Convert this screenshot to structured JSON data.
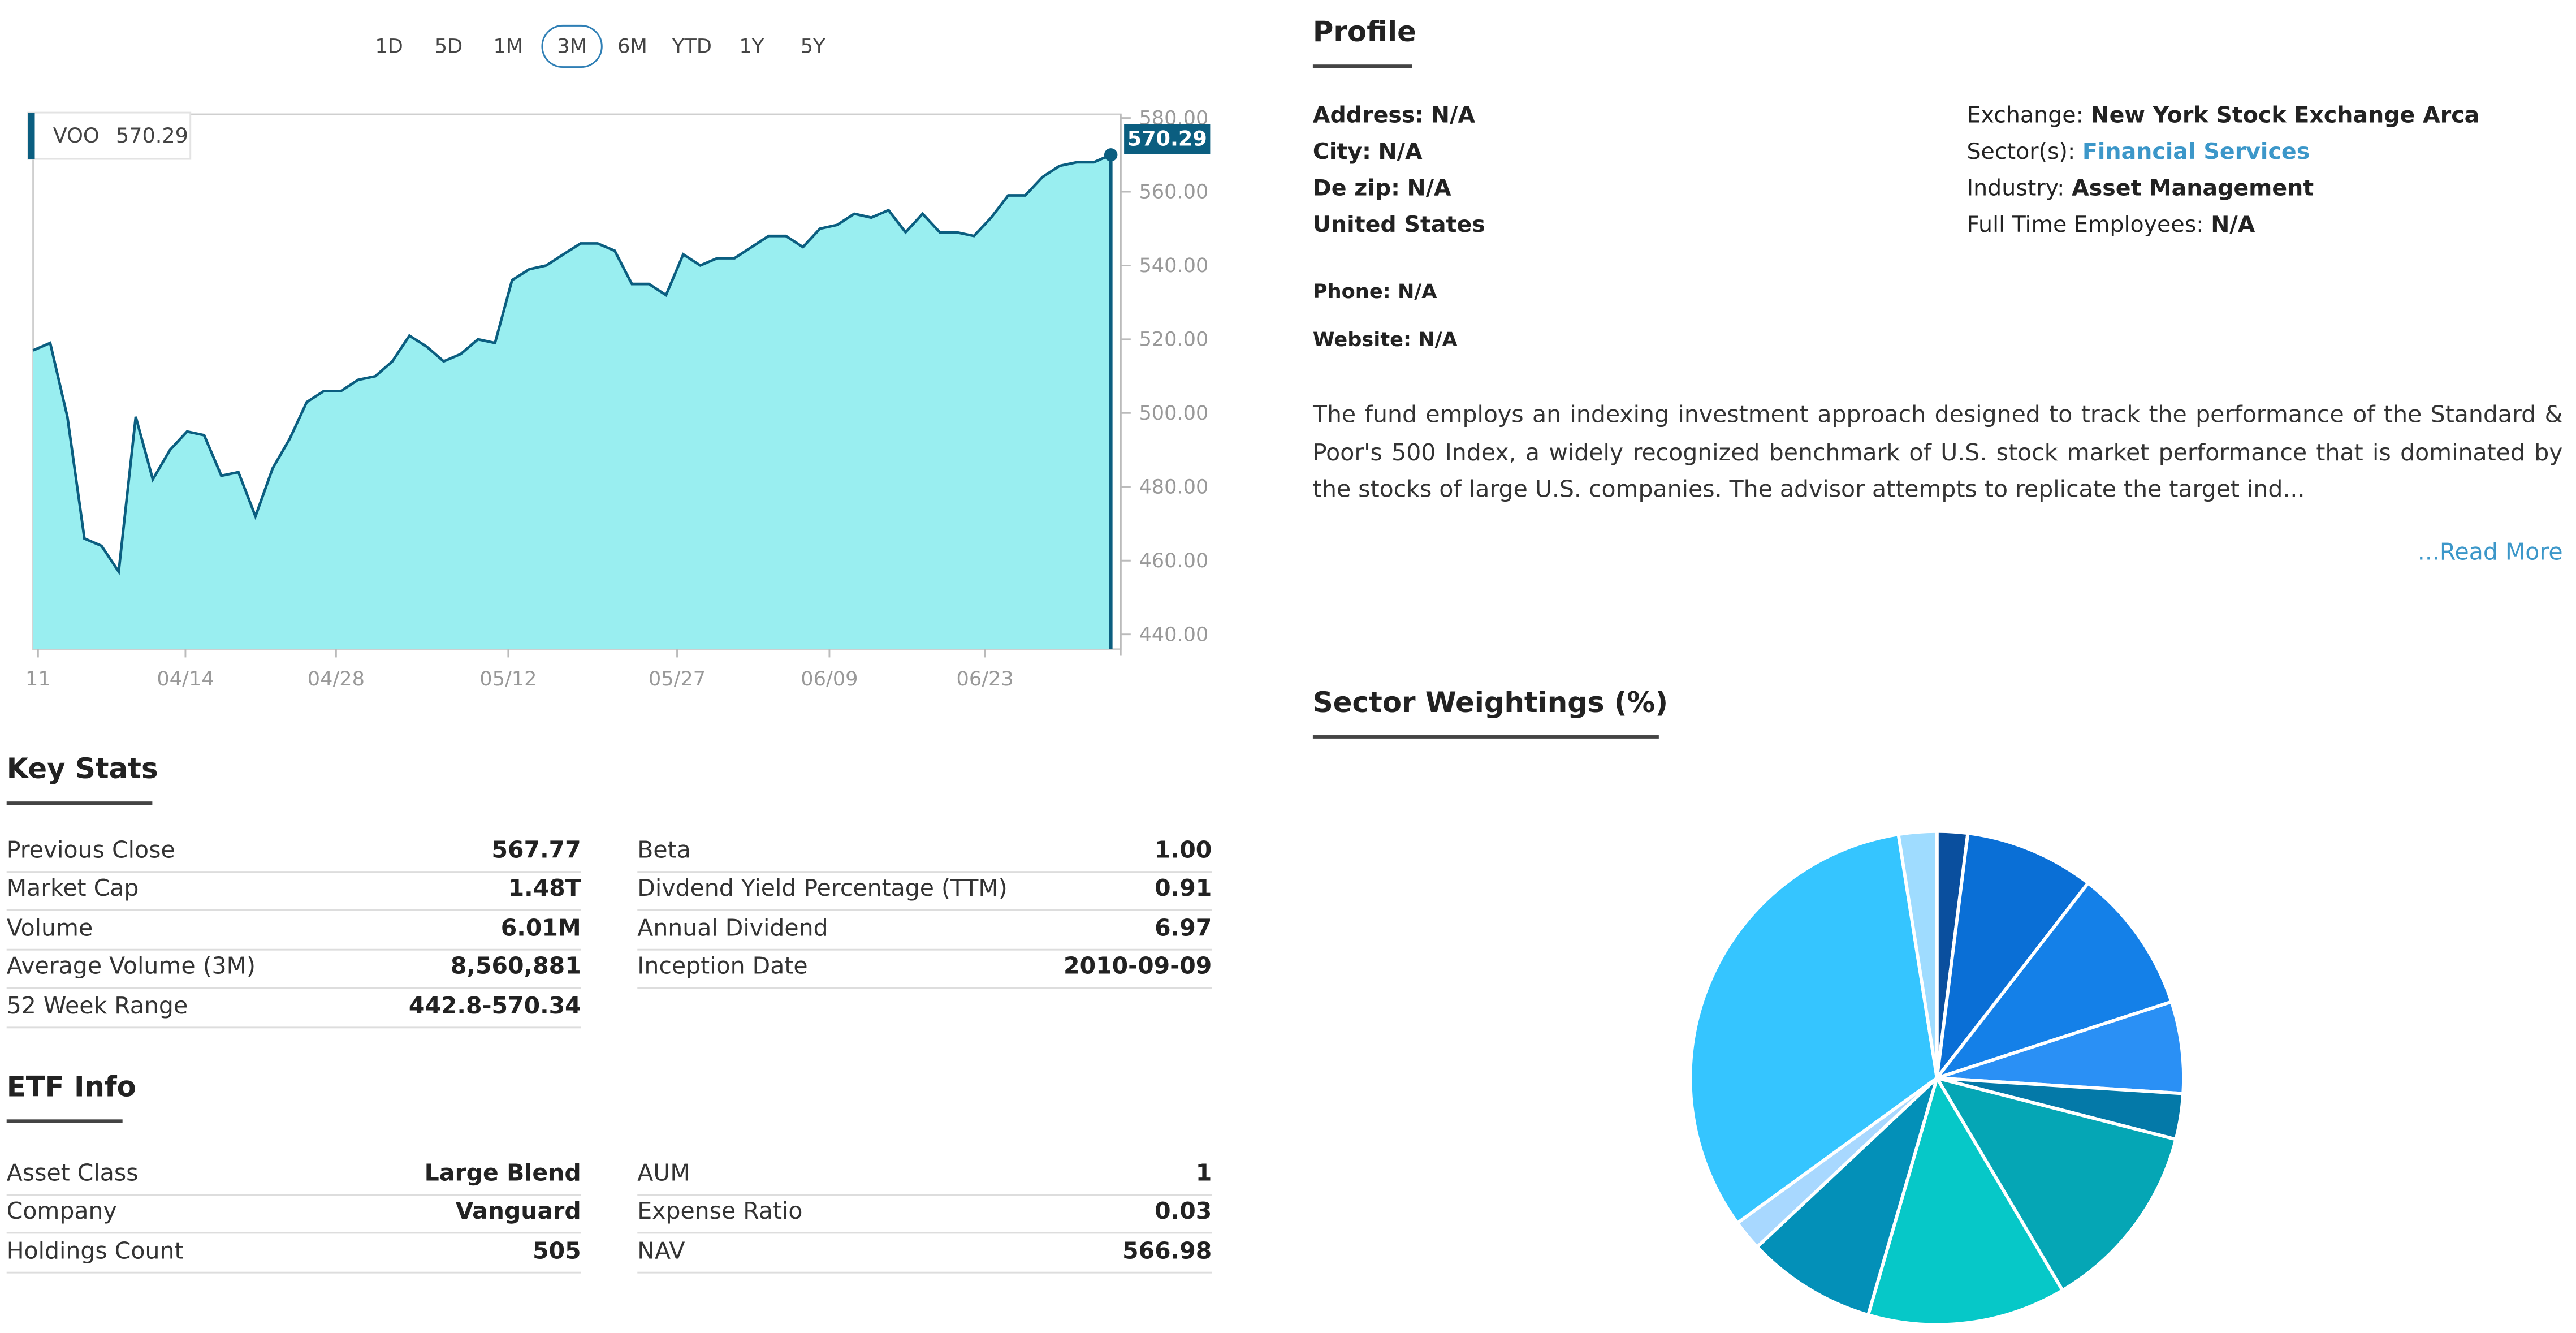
{
  "range_tabs": [
    "1D",
    "5D",
    "1M",
    "3M",
    "6M",
    "YTD",
    "1Y",
    "5Y"
  ],
  "active_range": "3M",
  "chart_data": {
    "type": "area",
    "title": "",
    "legend": {
      "symbol": "VOO",
      "value": "570.29"
    },
    "last_price_label": "570.29",
    "x_tick_labels": [
      "11",
      "04/14",
      "04/28",
      "05/12",
      "05/27",
      "06/09",
      "06/23"
    ],
    "y_tick_labels": [
      "580.00",
      "560.00",
      "540.00",
      "520.00",
      "500.00",
      "480.00",
      "460.00",
      "440.00"
    ],
    "ylim": [
      436,
      581
    ],
    "series": [
      {
        "values": [
          517,
          519,
          499,
          466,
          464,
          457,
          499,
          482,
          490,
          495,
          494,
          483,
          484,
          472,
          485,
          493,
          503,
          506,
          506,
          509,
          510,
          514,
          521,
          518,
          514,
          516,
          520,
          519,
          536,
          539,
          540,
          543,
          546,
          546,
          544,
          535,
          535,
          532,
          543,
          540,
          542,
          542,
          545,
          548,
          548,
          545,
          550,
          551,
          554,
          553,
          555,
          549,
          554,
          549,
          549,
          548,
          553,
          559,
          559,
          564,
          567,
          568,
          568,
          570
        ]
      }
    ],
    "colors": {
      "line": "#0b5e80",
      "fill": "#99eef0",
      "label_bg": "#0b5e80"
    }
  },
  "key_stats": {
    "title": "Key Stats",
    "left": [
      {
        "label": "Previous Close",
        "value": "567.77"
      },
      {
        "label": "Market Cap",
        "value": "1.48T"
      },
      {
        "label": "Volume",
        "value": "6.01M"
      },
      {
        "label": "Average Volume (3M)",
        "value": "8,560,881"
      },
      {
        "label": "52 Week Range",
        "value": "442.8-570.34"
      }
    ],
    "right": [
      {
        "label": "Beta",
        "value": "1.00"
      },
      {
        "label": "Divdend Yield Percentage (TTM)",
        "value": "0.91"
      },
      {
        "label": "Annual Dividend",
        "value": "6.97"
      },
      {
        "label": "Inception Date",
        "value": "2010-09-09"
      }
    ]
  },
  "etf_info": {
    "title": "ETF Info",
    "left": [
      {
        "label": "Asset Class",
        "value": "Large Blend"
      },
      {
        "label": "Company",
        "value": "Vanguard"
      },
      {
        "label": "Holdings Count",
        "value": "505"
      }
    ],
    "right": [
      {
        "label": "AUM",
        "value": "1"
      },
      {
        "label": "Expense Ratio",
        "value": "0.03"
      },
      {
        "label": "NAV",
        "value": "566.98"
      }
    ]
  },
  "profile": {
    "title": "Profile",
    "address": {
      "label": "Address:",
      "value": "N/A"
    },
    "city": {
      "label": "City:",
      "value": "N/A"
    },
    "zip": {
      "label": "De zip:",
      "value": "N/A"
    },
    "country": "United States",
    "phone": {
      "label": "Phone:",
      "value": "N/A"
    },
    "website": {
      "label": "Website:",
      "value": "N/A"
    },
    "exchange": {
      "label": "Exchange:",
      "value": "New York Stock Exchange Arca"
    },
    "sector": {
      "label": "Sector(s):",
      "value": "Financial Services"
    },
    "industry": {
      "label": "Industry:",
      "value": "Asset Management"
    },
    "employees": {
      "label": "Full Time Employees:",
      "value": "N/A"
    },
    "description": "The fund employs an indexing investment approach designed to track the performance of the Standard & Poor's 500 Index, a widely recognized benchmark of U.S. stock market performance that is dominated by the stocks of large U.S. companies. The advisor attempts to replicate the target ind...",
    "read_more": "...Read More"
  },
  "sector_weightings": {
    "title": "Sector Weightings (%)",
    "chart_data": {
      "type": "pie",
      "slices": [
        {
          "value": 2.0,
          "color": "#0a4f9e"
        },
        {
          "value": 8.5,
          "color": "#0a6fd6"
        },
        {
          "value": 9.5,
          "color": "#1480e8"
        },
        {
          "value": 6.0,
          "color": "#2a90f5"
        },
        {
          "value": 3.0,
          "color": "#0479a8"
        },
        {
          "value": 12.5,
          "color": "#05a6b5"
        },
        {
          "value": 13.0,
          "color": "#06c8c8"
        },
        {
          "value": 8.5,
          "color": "#0390b8"
        },
        {
          "value": 2.0,
          "color": "#a8d8ff"
        },
        {
          "value": 32.5,
          "color": "#35c5ff"
        },
        {
          "value": 2.5,
          "color": "#9fdcff"
        }
      ]
    }
  }
}
